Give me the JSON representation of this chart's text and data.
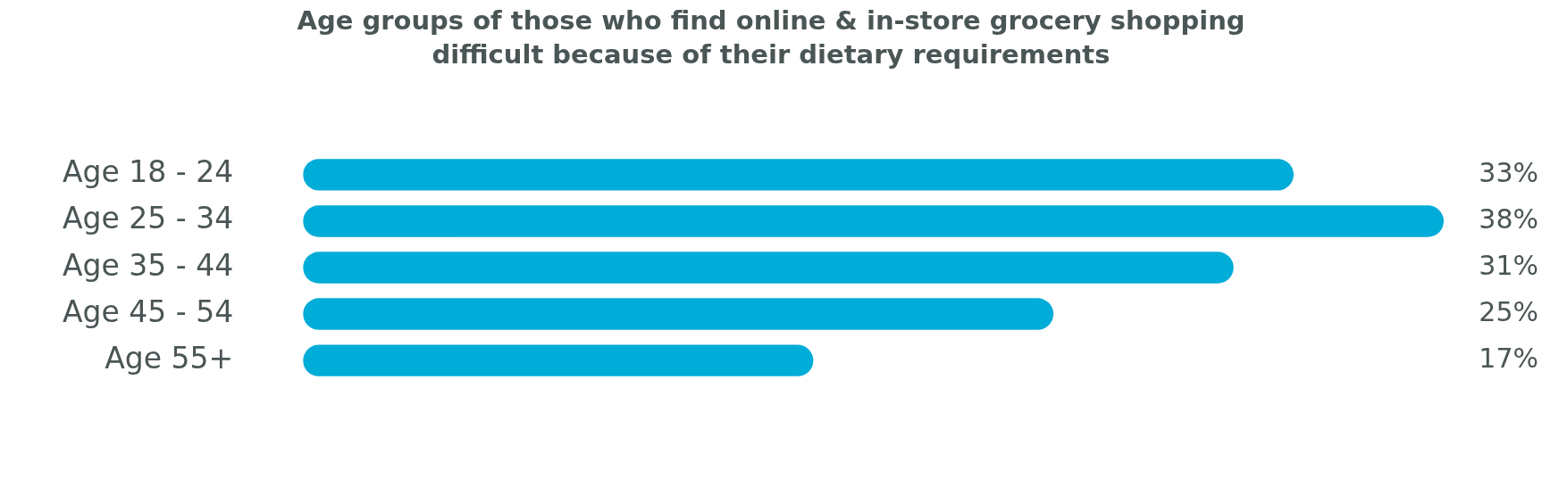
{
  "chart_data": {
    "type": "bar",
    "orientation": "horizontal",
    "title": "Age groups of those who find online & in-store grocery shopping\ndifficult because of their dietary requirements",
    "categories": [
      "Age 18 - 24",
      "Age 25 - 34",
      "Age 35 - 44",
      "Age 45 - 54",
      "Age 55+"
    ],
    "values": [
      33,
      38,
      31,
      25,
      17
    ],
    "value_labels": [
      "33%",
      "38%",
      "31%",
      "25%",
      "17%"
    ],
    "color": "#00acd8",
    "grid": false,
    "legend": false
  }
}
